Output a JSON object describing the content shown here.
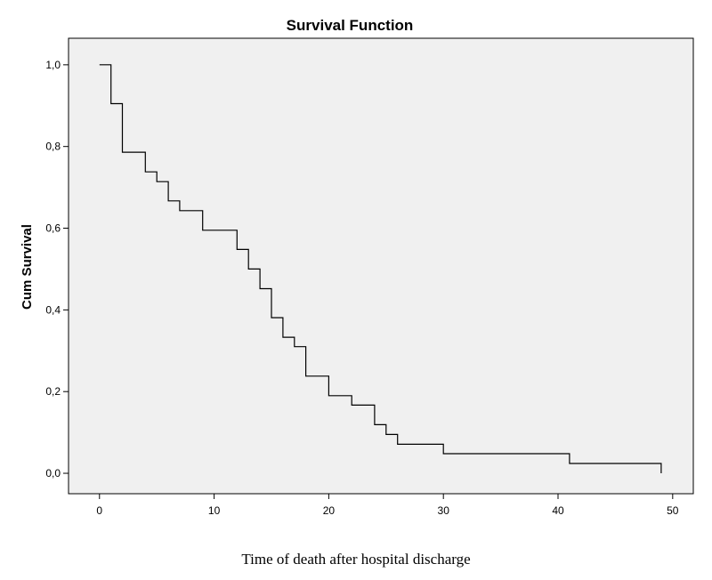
{
  "chart_data": {
    "type": "line",
    "step": true,
    "title": "Survival Function",
    "xlabel": "Time of death after hospital discharge",
    "ylabel": "Cum Survival",
    "xlim": [
      -2.7,
      51.8
    ],
    "ylim": [
      -0.05,
      1.065
    ],
    "x_ticks": [
      0,
      10,
      20,
      30,
      40,
      50
    ],
    "y_ticks": [
      0.0,
      0.2,
      0.4,
      0.6,
      0.8,
      1.0
    ],
    "x_tick_labels": [
      "0",
      "10",
      "20",
      "30",
      "40",
      "50"
    ],
    "y_tick_labels": [
      "0,0",
      "0,2",
      "0,4",
      "0,6",
      "0,8",
      "1,0"
    ],
    "grid": false,
    "legend": "none",
    "colors": {
      "plot_background": "#f0f0f0",
      "line": "#000000"
    },
    "x": [
      0,
      1,
      2,
      4,
      5,
      6,
      7,
      9,
      12,
      13,
      14,
      15,
      16,
      17,
      18,
      20,
      22,
      24,
      25,
      26,
      30,
      41,
      49
    ],
    "y": [
      1.0,
      0.905,
      0.786,
      0.738,
      0.714,
      0.667,
      0.643,
      0.595,
      0.548,
      0.5,
      0.452,
      0.381,
      0.333,
      0.31,
      0.238,
      0.19,
      0.167,
      0.119,
      0.095,
      0.071,
      0.048,
      0.024,
      0.0
    ]
  }
}
